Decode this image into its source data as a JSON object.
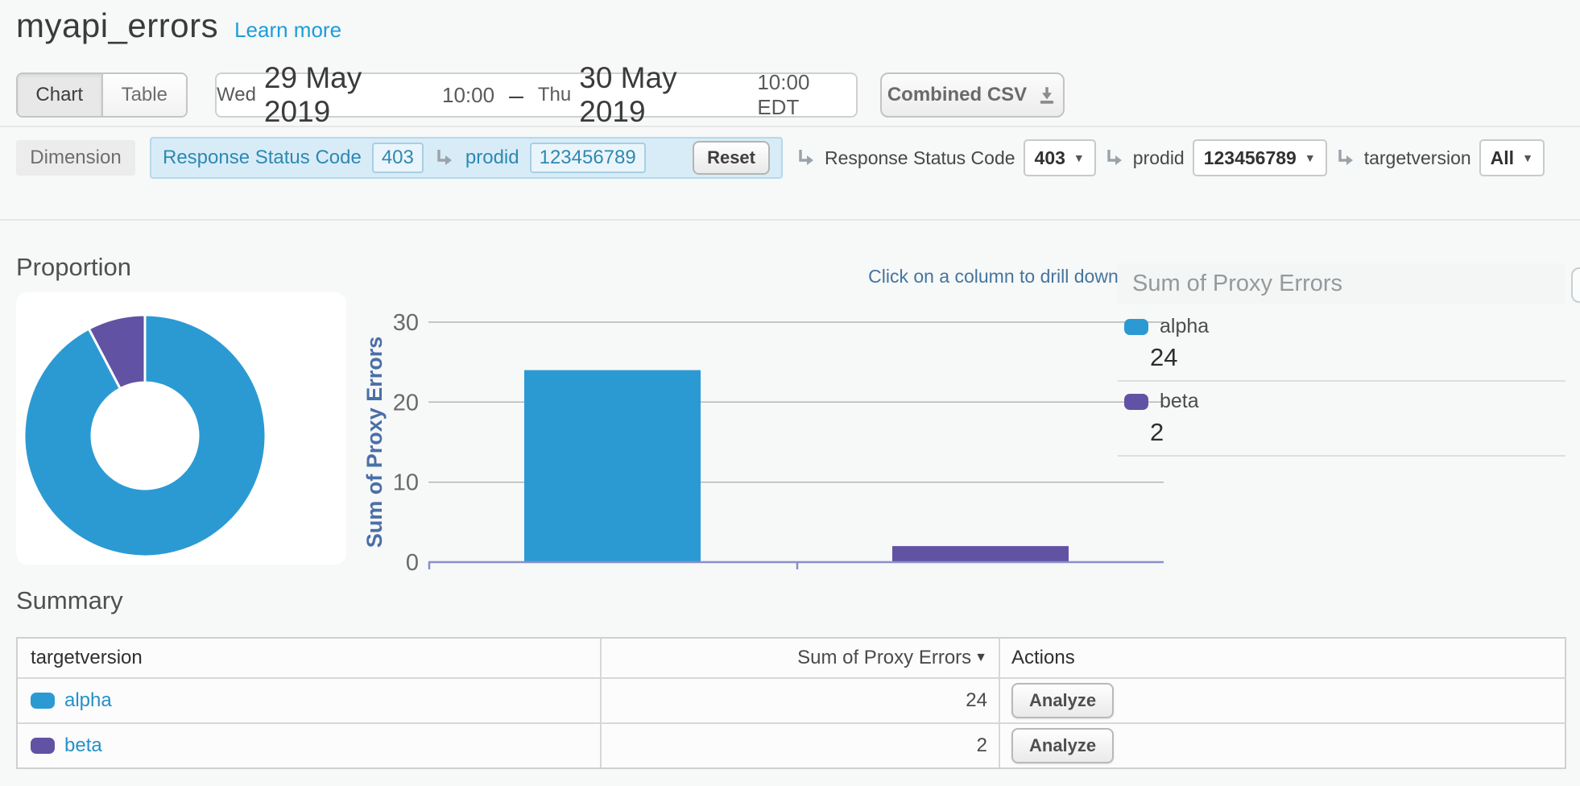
{
  "header": {
    "title": "myapi_errors",
    "learn_more": "Learn more"
  },
  "toolbar": {
    "view_toggle": {
      "chart": "Chart",
      "table": "Table",
      "active": "Chart"
    },
    "date_range": {
      "start_day": "Wed",
      "start_date": "29 May 2019",
      "start_time": "10:00",
      "separator": "–",
      "end_day": "Thu",
      "end_date": "30 May 2019",
      "end_time": "10:00 EDT"
    },
    "export_button": "Combined CSV"
  },
  "dimension_bar": {
    "label": "Dimension",
    "applied_filters": [
      {
        "name": "Response Status Code",
        "value": "403"
      },
      {
        "name": "prodid",
        "value": "123456789"
      }
    ],
    "reset_label": "Reset",
    "drilldowns": [
      {
        "name": "Response Status Code",
        "selected": "403"
      },
      {
        "name": "prodid",
        "selected": "123456789"
      },
      {
        "name": "targetversion",
        "selected": "All"
      }
    ]
  },
  "proportion": {
    "title": "Proportion"
  },
  "bar_chart_hint": "Click on a column to drill down on it.",
  "legend": {
    "title": "Sum of Proxy Errors",
    "items": [
      {
        "label": "alpha",
        "value": "24",
        "color": "#2b9ad3"
      },
      {
        "label": "beta",
        "value": "2",
        "color": "#6252a3"
      }
    ]
  },
  "summary": {
    "title": "Summary",
    "table": {
      "headers": [
        "targetversion",
        "Sum of Proxy Errors",
        "Actions"
      ],
      "rows": [
        {
          "label": "alpha",
          "color": "#2b9ad3",
          "value": "24",
          "action": "Analyze"
        },
        {
          "label": "beta",
          "color": "#6252a3",
          "value": "2",
          "action": "Analyze"
        }
      ]
    }
  },
  "chart_data": [
    {
      "type": "pie",
      "title": "Proportion",
      "labels": [
        "alpha",
        "beta"
      ],
      "values": [
        24,
        2
      ],
      "colors": [
        "#2b9ad3",
        "#6252a3"
      ],
      "inner_radius_ratio": 0.44,
      "start_angle_deg": 0,
      "legend_position": "right-panel"
    },
    {
      "type": "bar",
      "categories": [
        "alpha",
        "beta"
      ],
      "values": [
        24,
        2
      ],
      "colors": [
        "#2b9ad3",
        "#6252a3"
      ],
      "title": "",
      "xlabel": "",
      "ylabel": "Sum of Proxy Errors",
      "y_ticks": [
        30,
        20,
        10,
        0
      ],
      "ylim": [
        0,
        30
      ],
      "grid": true,
      "annotation": "Click on a column to drill down on it."
    }
  ]
}
